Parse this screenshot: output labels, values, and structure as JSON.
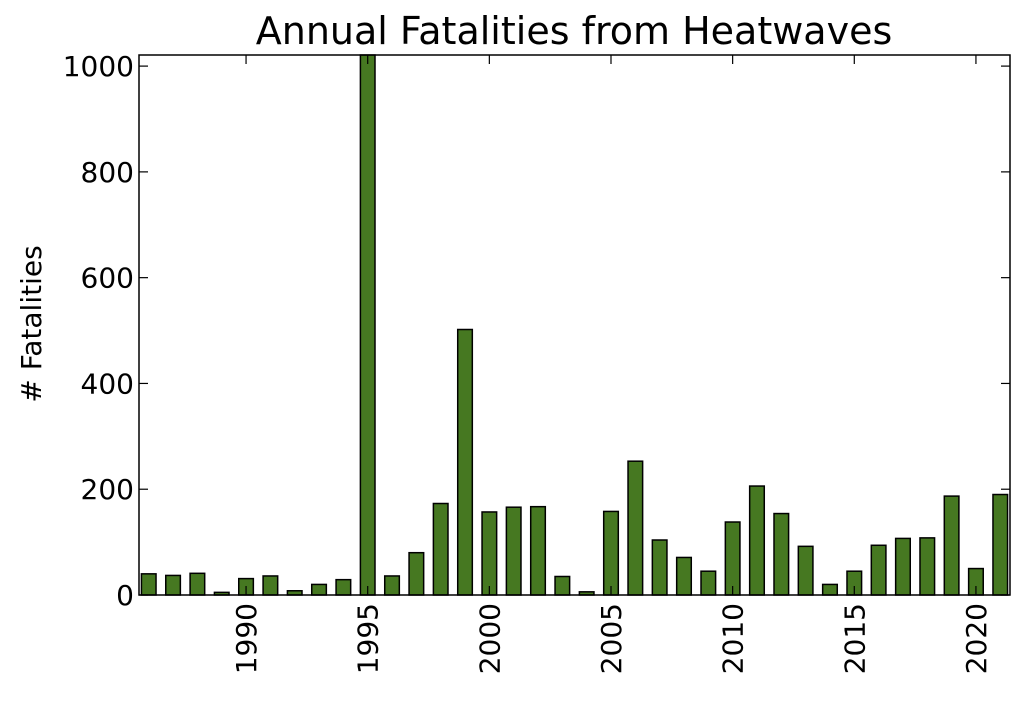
{
  "chart_data": {
    "type": "bar",
    "title": "Annual Fatalities from Heatwaves",
    "xlabel": "",
    "ylabel": "# Fatalities",
    "categories": [
      1986,
      1987,
      1988,
      1989,
      1990,
      1991,
      1992,
      1993,
      1994,
      1995,
      1996,
      1997,
      1998,
      1999,
      2000,
      2001,
      2002,
      2003,
      2004,
      2005,
      2006,
      2007,
      2008,
      2009,
      2010,
      2011,
      2012,
      2013,
      2014,
      2015,
      2016,
      2017,
      2018,
      2019,
      2020,
      2021
    ],
    "values": [
      40,
      37,
      41,
      5,
      31,
      36,
      8,
      20,
      29,
      1021,
      36,
      80,
      173,
      502,
      157,
      166,
      167,
      35,
      6,
      158,
      253,
      104,
      71,
      45,
      138,
      206,
      154,
      92,
      20,
      45,
      94,
      107,
      108,
      187,
      50,
      190
    ],
    "ylim": [
      0,
      1021
    ],
    "yticks": [
      "0",
      "200",
      "400",
      "600",
      "800",
      "1000"
    ],
    "xticks": [
      "1990",
      "1995",
      "2000",
      "2005",
      "2010",
      "2015",
      "2020"
    ],
    "xlim": [
      1985.6,
      2021.4
    ],
    "grid": false,
    "legend": "none",
    "bar_color": "#467821",
    "edge_color": "#000000"
  }
}
